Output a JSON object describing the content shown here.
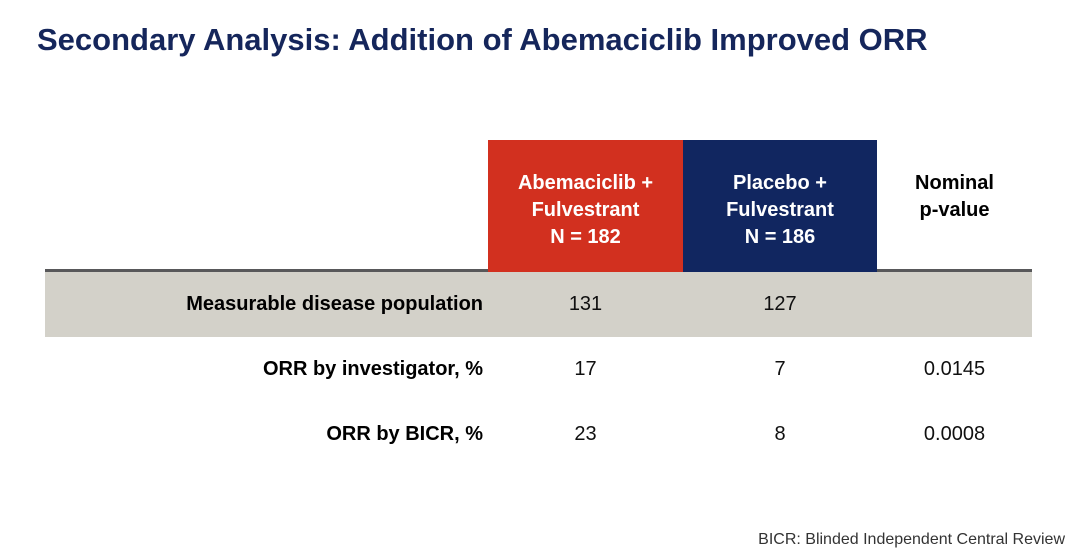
{
  "slide": {
    "title": "Secondary Analysis: Addition of Abemaciclib Improved ORR",
    "footnote": "BICR: Blinded Independent Central Review"
  },
  "table": {
    "header": {
      "arm1": {
        "line1": "Abemaciclib +",
        "line2": "Fulvestrant",
        "line3": "N = 182",
        "color": "#D2301F"
      },
      "arm2": {
        "line1": "Placebo +",
        "line2": "Fulvestrant",
        "line3": "N = 186",
        "color": "#112660"
      },
      "pcol": {
        "line1": "Nominal",
        "line2": "p-value"
      }
    },
    "rows": [
      {
        "label": "Measurable disease population",
        "abemaciclib": "131",
        "placebo": "127",
        "p_value": "",
        "shaded": true
      },
      {
        "label": "ORR by investigator, %",
        "abemaciclib": "17",
        "placebo": "7",
        "p_value": "0.0145",
        "shaded": false
      },
      {
        "label": "ORR by BICR, %",
        "abemaciclib": "23",
        "placebo": "8",
        "p_value": "0.0008",
        "shaded": false
      }
    ]
  },
  "colors": {
    "title_navy": "#15265B",
    "arm1_red": "#D2301F",
    "arm2_navy": "#112660",
    "shaded_row_gray": "#D3D1C9",
    "divider_gray": "#58585A",
    "background": "#FFFFFF"
  }
}
